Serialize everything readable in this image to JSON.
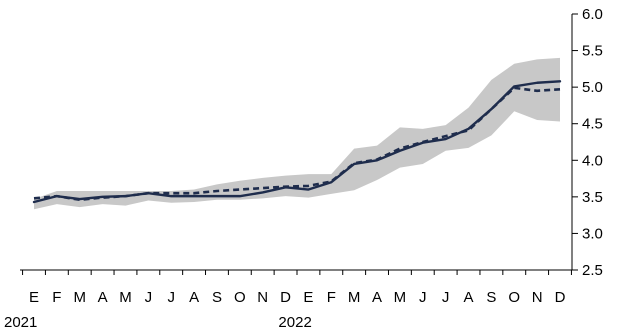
{
  "chart_data": {
    "type": "line",
    "title": "",
    "xlabel": "",
    "ylabel": "",
    "x": [
      "E",
      "F",
      "M",
      "A",
      "M",
      "J",
      "J",
      "A",
      "S",
      "O",
      "N",
      "D",
      "E",
      "F",
      "M",
      "A",
      "M",
      "J",
      "J",
      "A",
      "S",
      "O",
      "N",
      "D"
    ],
    "year_labels": [
      {
        "label": "2021",
        "index": 0
      },
      {
        "label": "2022",
        "index": 12
      }
    ],
    "ylim": [
      2.5,
      6.0
    ],
    "yticks": [
      "2.5",
      "3.0",
      "3.5",
      "4.0",
      "4.5",
      "5.0",
      "5.5",
      "6.0"
    ],
    "y_axis_position": "right",
    "grid": false,
    "legend": "none",
    "band": {
      "upper": [
        3.47,
        3.58,
        3.58,
        3.58,
        3.58,
        3.58,
        3.58,
        3.6,
        3.67,
        3.72,
        3.76,
        3.79,
        3.81,
        3.81,
        4.16,
        4.2,
        4.45,
        4.43,
        4.48,
        4.72,
        5.1,
        5.32,
        5.38,
        5.4
      ],
      "lower": [
        3.33,
        3.4,
        3.36,
        3.4,
        3.38,
        3.45,
        3.42,
        3.43,
        3.46,
        3.46,
        3.48,
        3.51,
        3.49,
        3.54,
        3.59,
        3.73,
        3.9,
        3.95,
        4.13,
        4.17,
        4.34,
        4.67,
        4.55,
        4.53
      ],
      "color": "#c8c8c8"
    },
    "series": [
      {
        "style": "solid",
        "color": "#1f2d4d",
        "values": [
          3.43,
          3.51,
          3.47,
          3.5,
          3.51,
          3.55,
          3.51,
          3.51,
          3.51,
          3.51,
          3.56,
          3.63,
          3.6,
          3.7,
          3.95,
          4.0,
          4.13,
          4.24,
          4.29,
          4.43,
          4.7,
          5.01,
          5.06,
          5.08
        ]
      },
      {
        "style": "dashed",
        "color": "#1f2d4d",
        "values": [
          3.48,
          3.51,
          3.46,
          3.49,
          3.51,
          3.55,
          3.55,
          3.55,
          3.58,
          3.6,
          3.62,
          3.64,
          3.65,
          3.71,
          3.96,
          4.01,
          4.16,
          4.25,
          4.33,
          4.41,
          4.7,
          4.99,
          4.95,
          4.97
        ]
      }
    ]
  }
}
